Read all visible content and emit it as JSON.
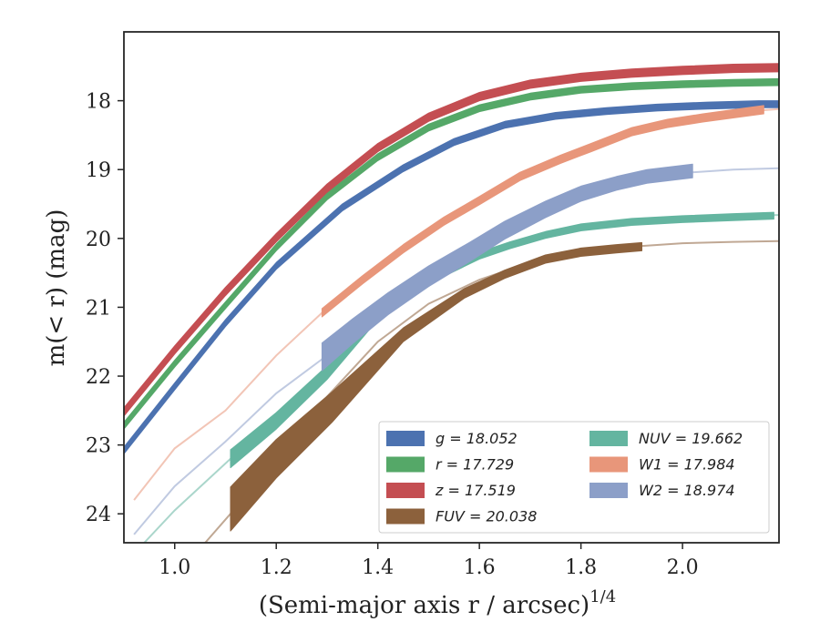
{
  "chart_data": {
    "type": "line",
    "title": "",
    "xlabel": "(Semi-major axis r / arcsec)",
    "xlabel_exponent": "1/4",
    "ylabel": "m(< r) (mag)",
    "xlim": [
      0.9,
      2.19
    ],
    "ylim": [
      24.42,
      17.0
    ],
    "y_inverted": true,
    "grid": false,
    "legend_position": "lower-right",
    "legend_columns": 2,
    "x_ticks": [
      "1.0",
      "1.2",
      "1.4",
      "1.6",
      "1.8",
      "2.0"
    ],
    "y_ticks": [
      "18",
      "19",
      "20",
      "21",
      "22",
      "23",
      "24"
    ],
    "series": [
      {
        "name": "g = 18.052",
        "color": "#4c72b0",
        "band_half_width": 0.05,
        "x": [
          0.9,
          1.0,
          1.1,
          1.2,
          1.33,
          1.45,
          1.55,
          1.65,
          1.75,
          1.85,
          1.95,
          2.05,
          2.15,
          2.19
        ],
        "y": [
          23.08,
          22.15,
          21.23,
          20.4,
          19.55,
          18.98,
          18.6,
          18.35,
          18.22,
          18.15,
          18.1,
          18.07,
          18.05,
          18.05
        ]
      },
      {
        "name": "r = 17.729",
        "color": "#55a868",
        "band_half_width": 0.05,
        "x": [
          0.9,
          1.0,
          1.1,
          1.2,
          1.3,
          1.4,
          1.5,
          1.6,
          1.7,
          1.8,
          1.9,
          2.0,
          2.1,
          2.19
        ],
        "y": [
          22.72,
          21.82,
          20.97,
          20.13,
          19.39,
          18.82,
          18.39,
          18.11,
          17.94,
          17.84,
          17.79,
          17.76,
          17.74,
          17.73
        ]
      },
      {
        "name": "z = 17.519",
        "color": "#c44e52",
        "band_half_width": 0.06,
        "x": [
          0.9,
          1.0,
          1.1,
          1.2,
          1.3,
          1.4,
          1.5,
          1.6,
          1.7,
          1.8,
          1.9,
          2.0,
          2.1,
          2.19
        ],
        "y": [
          22.52,
          21.62,
          20.77,
          19.99,
          19.27,
          18.68,
          18.24,
          17.94,
          17.76,
          17.66,
          17.6,
          17.56,
          17.53,
          17.52
        ]
      },
      {
        "name": "FUV = 20.038",
        "color": "#8c613c",
        "extrapolation": {
          "x": [
            1.06,
            1.11,
            1.2,
            1.3,
            1.4,
            1.5,
            1.6,
            1.7,
            1.8,
            1.9,
            2.0,
            2.1,
            2.19
          ],
          "y": [
            24.42,
            24.0,
            23.2,
            22.3,
            21.5,
            20.95,
            20.6,
            20.35,
            20.2,
            20.12,
            20.07,
            20.05,
            20.04
          ]
        },
        "band": {
          "x": [
            1.11,
            1.2,
            1.31,
            1.45,
            1.57,
            1.65,
            1.73,
            1.8,
            1.87,
            1.92
          ],
          "y": [
            23.93,
            23.2,
            22.45,
            21.4,
            20.8,
            20.52,
            20.3,
            20.2,
            20.15,
            20.12
          ],
          "half_width": [
            0.32,
            0.28,
            0.22,
            0.1,
            0.07,
            0.06,
            0.06,
            0.06,
            0.06,
            0.06
          ]
        }
      },
      {
        "name": "NUV = 19.662",
        "color": "#64b5a0",
        "extrapolation": {
          "x": [
            0.94,
            1.0,
            1.11,
            1.2,
            1.3,
            1.4,
            1.5,
            1.6,
            1.7,
            1.8,
            1.9,
            2.0,
            2.1,
            2.19
          ],
          "y": [
            24.42,
            23.95,
            23.2,
            22.65,
            21.9,
            21.1,
            20.65,
            20.25,
            19.98,
            19.82,
            19.74,
            19.7,
            19.67,
            19.66
          ]
        },
        "band": {
          "x": [
            1.11,
            1.2,
            1.3,
            1.4,
            1.5,
            1.6,
            1.66,
            1.73,
            1.8,
            1.9,
            2.0,
            2.1,
            2.18
          ],
          "y": [
            23.2,
            22.65,
            21.95,
            21.1,
            20.6,
            20.25,
            20.1,
            19.95,
            19.84,
            19.76,
            19.72,
            19.69,
            19.67
          ],
          "half_width": [
            0.13,
            0.12,
            0.1,
            0.08,
            0.06,
            0.05,
            0.05,
            0.05,
            0.05,
            0.05,
            0.05,
            0.05,
            0.05
          ]
        }
      },
      {
        "name": "W1 = 17.984",
        "color": "#e8967a",
        "extrapolation": {
          "x": [
            0.92,
            1.0,
            1.1,
            1.2,
            1.29,
            1.4,
            1.5,
            1.6,
            1.7,
            1.8,
            1.9,
            2.0,
            2.1,
            2.19
          ],
          "y": [
            23.8,
            23.05,
            22.5,
            21.7,
            21.08,
            20.4,
            19.9,
            19.5,
            19.05,
            18.72,
            18.45,
            18.28,
            18.17,
            18.12
          ]
        },
        "band": {
          "x": [
            1.29,
            1.37,
            1.45,
            1.53,
            1.6,
            1.68,
            1.76,
            1.82,
            1.9,
            1.97,
            2.04,
            2.12,
            2.16
          ],
          "y": [
            21.08,
            20.6,
            20.15,
            19.75,
            19.45,
            19.1,
            18.85,
            18.68,
            18.45,
            18.33,
            18.25,
            18.17,
            18.13
          ],
          "half_width": [
            0.06,
            0.06,
            0.06,
            0.06,
            0.06,
            0.06,
            0.06,
            0.06,
            0.06,
            0.06,
            0.06,
            0.06,
            0.06
          ]
        }
      },
      {
        "name": "W2 = 18.974",
        "color": "#8c9fc8",
        "extrapolation": {
          "x": [
            0.92,
            1.0,
            1.1,
            1.2,
            1.3,
            1.4,
            1.5,
            1.6,
            1.7,
            1.8,
            1.9,
            2.0,
            2.1,
            2.19
          ],
          "y": [
            24.3,
            23.6,
            22.95,
            22.25,
            21.7,
            21.05,
            20.55,
            20.1,
            19.7,
            19.35,
            19.15,
            19.05,
            19.0,
            18.98
          ]
        },
        "band": {
          "x": [
            1.29,
            1.35,
            1.42,
            1.5,
            1.58,
            1.65,
            1.73,
            1.8,
            1.87,
            1.93,
            2.02
          ],
          "y": [
            21.72,
            21.35,
            20.95,
            20.55,
            20.2,
            19.88,
            19.58,
            19.35,
            19.2,
            19.1,
            19.02
          ],
          "half_width": [
            0.2,
            0.18,
            0.16,
            0.15,
            0.14,
            0.13,
            0.12,
            0.11,
            0.1,
            0.1,
            0.1
          ]
        }
      }
    ]
  }
}
